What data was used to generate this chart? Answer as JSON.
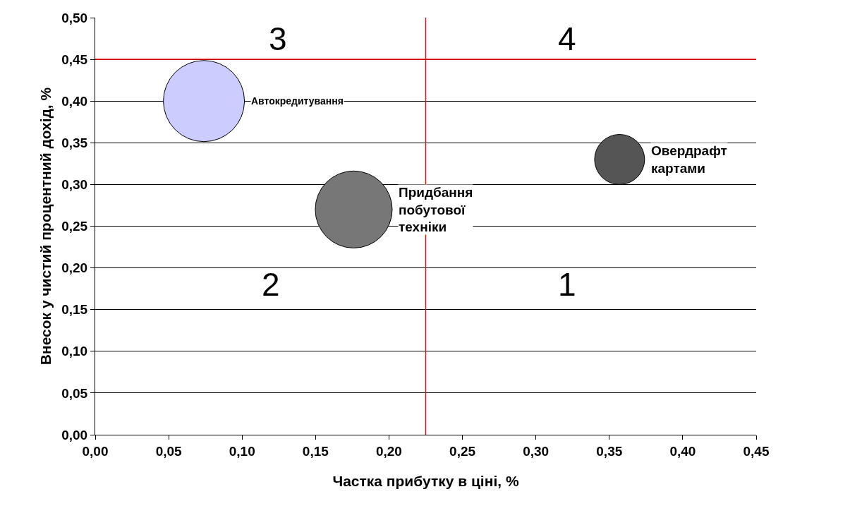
{
  "chart_data": {
    "type": "bubble",
    "xlabel": "Частка прибутку в ціні, %",
    "ylabel": "Внесок у чистий процентний дохід, %",
    "series": [
      {
        "name": "Автокредитування",
        "color": "#ccccff",
        "x": [
          0.074
        ],
        "values": [
          0.4
        ],
        "sizes": [
          1
        ]
      },
      {
        "name": "Придбання побутової техніки",
        "color": "#777777",
        "x": [
          0.176
        ],
        "values": [
          0.27
        ],
        "sizes": [
          0.9
        ]
      },
      {
        "name": "Овердрафт картами",
        "color": "#555555",
        "x": [
          0.357
        ],
        "values": [
          0.33
        ],
        "sizes": [
          0.38
        ]
      }
    ],
    "xlim": [
      0,
      0.45
    ],
    "xticks": [
      {
        "value": 0,
        "label": "0,00"
      },
      {
        "value": 0.05,
        "label": "0,05"
      },
      {
        "value": 0.1,
        "label": "0,10"
      },
      {
        "value": 0.15,
        "label": "0,15"
      },
      {
        "value": 0.2,
        "label": "0,20"
      },
      {
        "value": 0.25,
        "label": "0,25"
      },
      {
        "value": 0.3,
        "label": "0,30"
      },
      {
        "value": 0.35,
        "label": "0,35"
      },
      {
        "value": 0.4,
        "label": "0,40"
      },
      {
        "value": 0.45,
        "label": "0,45"
      }
    ],
    "ylim": [
      0,
      0.5
    ],
    "yticks": [
      {
        "value": 0,
        "label": "0,00"
      },
      {
        "value": 0.05,
        "label": "0,05"
      },
      {
        "value": 0.1,
        "label": "0,10"
      },
      {
        "value": 0.15,
        "label": "0,15"
      },
      {
        "value": 0.2,
        "label": "0,20"
      },
      {
        "value": 0.25,
        "label": "0,25"
      },
      {
        "value": 0.3,
        "label": "0,30"
      },
      {
        "value": 0.35,
        "label": "0,35"
      },
      {
        "value": 0.4,
        "label": "0,40"
      },
      {
        "value": 0.45,
        "label": "0,45"
      },
      {
        "value": 0.5,
        "label": "0,50"
      }
    ],
    "ref_lines": [
      {
        "axis": "x",
        "value": 0.225,
        "color": "#ff0000"
      },
      {
        "axis": "y",
        "value": 0.45,
        "color": "#ff0000"
      }
    ],
    "annotations": [
      "3",
      "4",
      "2",
      "1"
    ],
    "grid": "y",
    "legend": false
  }
}
